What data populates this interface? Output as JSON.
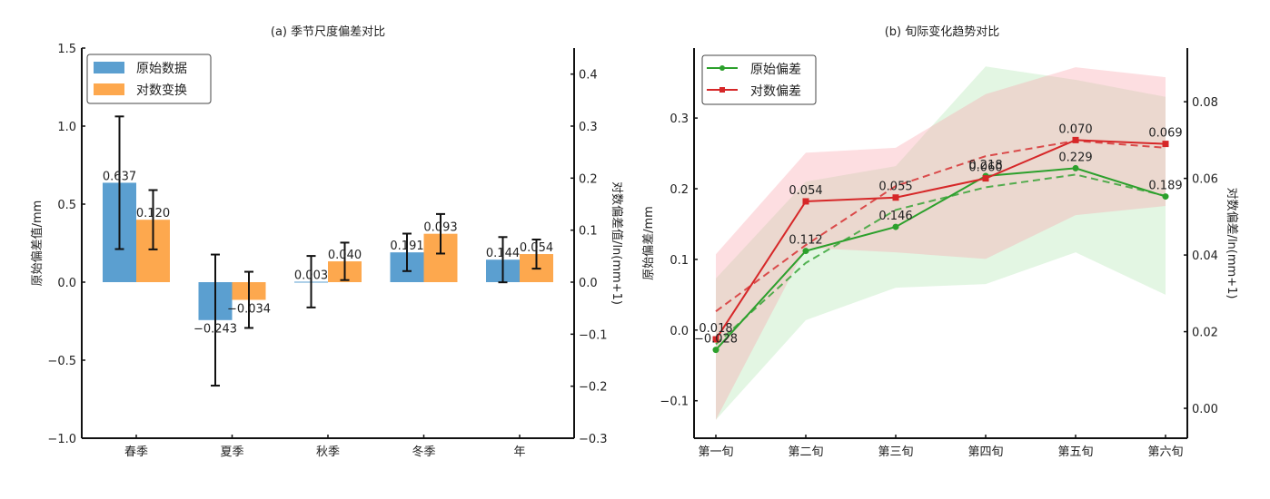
{
  "chart_data": [
    {
      "type": "bar",
      "title": "(a) 季节尺度偏差对比",
      "xlabel": "",
      "ylabel": "原始偏差值/mm",
      "ylabel_right": "对数偏差值/ln(mm+1)",
      "categories": [
        "春季",
        "夏季",
        "秋季",
        "冬季",
        "年"
      ],
      "ylim": [
        -1.0,
        1.5
      ],
      "ylim_right": [
        -0.3,
        0.45
      ],
      "yticks": [
        -1.0,
        -0.5,
        0.0,
        0.5,
        1.0,
        1.5
      ],
      "yticks_right": [
        -0.3,
        -0.2,
        -0.1,
        0.0,
        0.1,
        0.2,
        0.3,
        0.4
      ],
      "ytick_labels": [
        "-1.0",
        "-0.5",
        "0.0",
        "0.5",
        "1.0",
        "1.5"
      ],
      "ytick_labels_right": [
        "-0.3",
        "-0.2",
        "-0.1",
        "0.0",
        "0.1",
        "0.2",
        "0.3",
        "0.4"
      ],
      "legend_position": "top-left",
      "grid": false,
      "series": [
        {
          "name": "原始数据",
          "axis": "left",
          "color": "#5b9fd0",
          "values": [
            0.637,
            -0.243,
            0.003,
            0.191,
            0.144
          ],
          "errors": [
            0.425,
            0.42,
            0.165,
            0.12,
            0.145
          ],
          "labels": [
            "0.637",
            "-0.243",
            "0.003",
            "0.191",
            "0.144"
          ]
        },
        {
          "name": "对数变换",
          "axis": "right",
          "color": "#fda84e",
          "values": [
            0.12,
            -0.034,
            0.04,
            0.093,
            0.054
          ],
          "errors": [
            0.057,
            0.054,
            0.036,
            0.038,
            0.028
          ],
          "labels": [
            "0.120",
            "-0.034",
            "0.040",
            "0.093",
            "0.054"
          ]
        }
      ]
    },
    {
      "type": "line",
      "title": "(b) 旬际变化趋势对比",
      "xlabel": "",
      "ylabel": "原始偏差/mm",
      "ylabel_right": "对数偏差/ln(mm+1)",
      "categories": [
        "第一旬",
        "第二旬",
        "第三旬",
        "第四旬",
        "第五旬",
        "第六旬"
      ],
      "ylim": [
        -0.153,
        0.399
      ],
      "ylim_right": [
        -0.0078,
        0.094
      ],
      "yticks": [
        -0.1,
        0.0,
        0.1,
        0.2,
        0.3
      ],
      "yticks_right": [
        0.0,
        0.02,
        0.04,
        0.06,
        0.08
      ],
      "ytick_labels": [
        "-0.1",
        "0.0",
        "0.1",
        "0.2",
        "0.3"
      ],
      "ytick_labels_right": [
        "0.00",
        "0.02",
        "0.04",
        "0.06",
        "0.08"
      ],
      "legend_position": "top-left",
      "grid": false,
      "series": [
        {
          "name": "原始偏差",
          "axis": "left",
          "color": "#2ca02c",
          "marker": "circle",
          "values": [
            -0.028,
            0.112,
            0.146,
            0.218,
            0.229,
            0.189
          ],
          "labels": [
            "-0.028",
            "0.112",
            "0.146",
            "0.218",
            "0.229",
            "0.189"
          ],
          "trend": [
            -0.02,
            0.095,
            0.17,
            0.202,
            0.22,
            0.19
          ],
          "band_upper": [
            0.073,
            0.21,
            0.232,
            0.373,
            0.354,
            0.33
          ],
          "band_lower": [
            -0.127,
            0.014,
            0.06,
            0.065,
            0.11,
            0.05
          ],
          "band_color": "#90dc90"
        },
        {
          "name": "对数偏差",
          "axis": "right",
          "color": "#d62728",
          "marker": "square",
          "values": [
            0.018,
            0.054,
            0.055,
            0.06,
            0.07,
            0.069
          ],
          "labels": [
            "0.018",
            "0.054",
            "0.055",
            "0.060",
            "0.070",
            "0.069"
          ],
          "trend": [
            0.0253,
            0.0426,
            0.058,
            0.0658,
            0.0698,
            0.068
          ],
          "band_upper": [
            0.0402,
            0.0667,
            0.068,
            0.082,
            0.089,
            0.0864
          ],
          "band_lower": [
            -0.003,
            0.0419,
            0.0407,
            0.039,
            0.0504,
            0.0528
          ],
          "band_color": "#f8a0a8"
        }
      ]
    }
  ]
}
